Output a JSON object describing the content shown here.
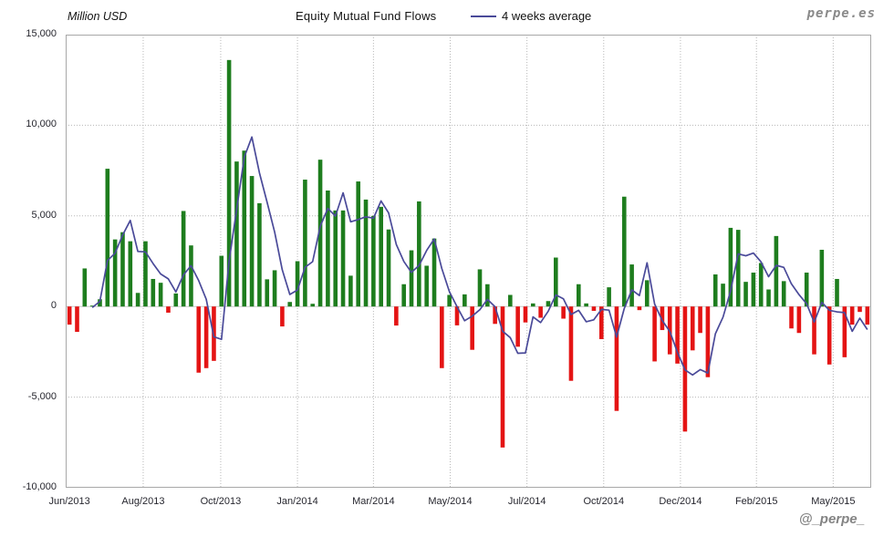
{
  "header": {
    "y_axis_title": "Million USD",
    "title": "Equity Mutual Fund Flows",
    "legend_label": "4 weeks average",
    "watermark": "perpe.es"
  },
  "footer": {
    "watermark": "@_perpe_"
  },
  "chart_data": {
    "type": "bar",
    "title": "Equity Mutual Fund Flows",
    "unit_label": "Million USD",
    "ylim": [
      -10000,
      15000
    ],
    "grid": "dotted",
    "legend_position": "top",
    "y_ticks": [
      {
        "value": 15000,
        "label": "15,000"
      },
      {
        "value": 10000,
        "label": "10,000"
      },
      {
        "value": 5000,
        "label": "5,000"
      },
      {
        "value": 0,
        "label": "0"
      },
      {
        "value": -5000,
        "label": "-5,000"
      },
      {
        "value": -10000,
        "label": "-10,000"
      }
    ],
    "x_ticks": [
      {
        "label": "Jun/2013",
        "week": 0
      },
      {
        "label": "Aug/2013",
        "week": 10.2
      },
      {
        "label": "Oct/2013",
        "week": 20.4
      },
      {
        "label": "Jan/2014",
        "week": 30.5
      },
      {
        "label": "Mar/2014",
        "week": 40.5
      },
      {
        "label": "May/2014",
        "week": 50.6
      },
      {
        "label": "Jul/2014",
        "week": 60.7
      },
      {
        "label": "Oct/2014",
        "week": 70.8
      },
      {
        "label": "Dec/2014",
        "week": 80.9
      },
      {
        "label": "Feb/2015",
        "week": 90.9
      },
      {
        "label": "May/2015",
        "week": 101
      }
    ],
    "series": [
      {
        "name": "Weekly equity mutual fund flows (Million USD)",
        "type": "bar",
        "values": [
          -1000,
          -1400,
          2100,
          50,
          400,
          7600,
          3700,
          4100,
          3600,
          750,
          3600,
          1520,
          1310,
          -340,
          720,
          5270,
          3370,
          -3650,
          -3400,
          -3000,
          2800,
          13600,
          8000,
          8600,
          7200,
          5700,
          1500,
          2000,
          -1100,
          250,
          2500,
          7000,
          150,
          8100,
          6400,
          5300,
          5300,
          1700,
          6900,
          5900,
          5000,
          5500,
          4250,
          -1050,
          1230,
          3100,
          5800,
          2250,
          3750,
          -3400,
          640,
          -1040,
          670,
          -2390,
          2050,
          1230,
          -960,
          -7780,
          640,
          -2220,
          -880,
          170,
          -620,
          300,
          2700,
          -670,
          -4100,
          1230,
          170,
          -240,
          -1800,
          1060,
          -5760,
          6060,
          2320,
          -200,
          1450,
          -3030,
          -1300,
          -2640,
          -3150,
          -6900,
          -2420,
          -1460,
          -3900,
          1770,
          1260,
          4340,
          4230,
          1360,
          1870,
          2400,
          940,
          3890,
          1400,
          -1210,
          -1460,
          1870,
          -2640,
          3130,
          -3200,
          1520,
          -2800,
          -1000,
          -300,
          -1000
        ]
      },
      {
        "name": "4 weeks average",
        "type": "line",
        "derived": "moving_average_window_4_of_weekly_flows"
      }
    ],
    "colors": {
      "positive_bar": "#1e7d1e",
      "negative_bar": "#e41414",
      "line": "#4a4a99",
      "grid": "#b8b8b8",
      "zero_line": "#c8c8c8",
      "border": "#a8a8a8",
      "tick_text": "#26262e"
    }
  }
}
